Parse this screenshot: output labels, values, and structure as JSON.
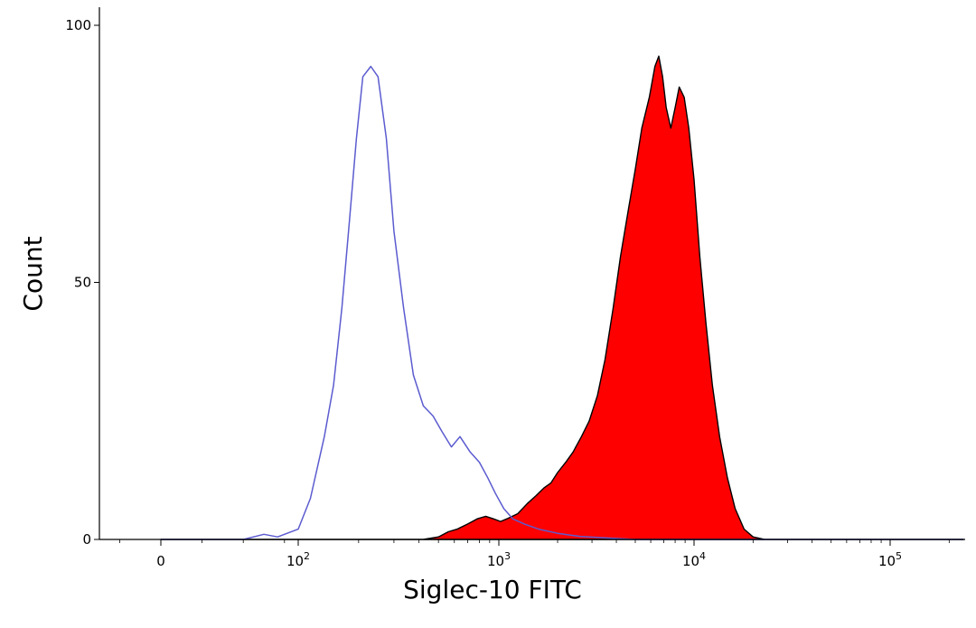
{
  "chart_data": {
    "type": "area",
    "xlabel": "Siglec-10 FITC",
    "ylabel": "Count",
    "x_scale": "biexponential",
    "ylim": [
      0,
      100
    ],
    "y_ticks": [
      {
        "value": 0,
        "label": "0"
      },
      {
        "value": 50,
        "label": "50"
      },
      {
        "value": 100,
        "label": "100"
      }
    ],
    "x_ticks": [
      {
        "value": 0,
        "base": "0",
        "exp": ""
      },
      {
        "value": 100,
        "base": "10",
        "exp": "2"
      },
      {
        "value": 1000,
        "base": "10",
        "exp": "3"
      },
      {
        "value": 10000,
        "base": "10",
        "exp": "4"
      },
      {
        "value": 100000,
        "base": "10",
        "exp": "5"
      }
    ],
    "grid": false,
    "series": [
      {
        "style": "outline",
        "color": "#5b5bd0",
        "points": [
          [
            0,
            0
          ],
          [
            60,
            0
          ],
          [
            75,
            1
          ],
          [
            85,
            0.5
          ],
          [
            100,
            2
          ],
          [
            115,
            8
          ],
          [
            135,
            20
          ],
          [
            150,
            30
          ],
          [
            165,
            45
          ],
          [
            180,
            62
          ],
          [
            195,
            78
          ],
          [
            210,
            90
          ],
          [
            230,
            92
          ],
          [
            250,
            90
          ],
          [
            275,
            78
          ],
          [
            300,
            60
          ],
          [
            335,
            45
          ],
          [
            375,
            32
          ],
          [
            420,
            26
          ],
          [
            470,
            24
          ],
          [
            520,
            21
          ],
          [
            580,
            18
          ],
          [
            640,
            20
          ],
          [
            720,
            17
          ],
          [
            800,
            15
          ],
          [
            880,
            12
          ],
          [
            960,
            9
          ],
          [
            1060,
            6
          ],
          [
            1180,
            4
          ],
          [
            1350,
            3
          ],
          [
            1600,
            2
          ],
          [
            2000,
            1.2
          ],
          [
            2600,
            0.6
          ],
          [
            3500,
            0.3
          ],
          [
            5000,
            0
          ],
          [
            250000,
            0
          ]
        ]
      },
      {
        "style": "filled",
        "color": "#ff0000",
        "points": [
          [
            0,
            0
          ],
          [
            420,
            0
          ],
          [
            500,
            0.5
          ],
          [
            560,
            1.5
          ],
          [
            620,
            2
          ],
          [
            700,
            3
          ],
          [
            780,
            4
          ],
          [
            860,
            4.5
          ],
          [
            940,
            4
          ],
          [
            1020,
            3.5
          ],
          [
            1100,
            4
          ],
          [
            1250,
            5
          ],
          [
            1400,
            7
          ],
          [
            1550,
            8.5
          ],
          [
            1700,
            10
          ],
          [
            1850,
            11
          ],
          [
            2000,
            13
          ],
          [
            2200,
            15
          ],
          [
            2400,
            17
          ],
          [
            2650,
            20
          ],
          [
            2900,
            23
          ],
          [
            3200,
            28
          ],
          [
            3500,
            35
          ],
          [
            3850,
            45
          ],
          [
            4200,
            55
          ],
          [
            4600,
            64
          ],
          [
            5000,
            72
          ],
          [
            5400,
            80
          ],
          [
            5900,
            86
          ],
          [
            6300,
            92
          ],
          [
            6600,
            94
          ],
          [
            6900,
            90
          ],
          [
            7200,
            84
          ],
          [
            7600,
            80
          ],
          [
            8000,
            84
          ],
          [
            8400,
            88
          ],
          [
            8900,
            86
          ],
          [
            9400,
            80
          ],
          [
            10000,
            70
          ],
          [
            10700,
            55
          ],
          [
            11500,
            42
          ],
          [
            12400,
            30
          ],
          [
            13500,
            20
          ],
          [
            14800,
            12
          ],
          [
            16200,
            6
          ],
          [
            18000,
            2
          ],
          [
            20000,
            0.5
          ],
          [
            23000,
            0
          ],
          [
            250000,
            0
          ]
        ]
      }
    ]
  }
}
